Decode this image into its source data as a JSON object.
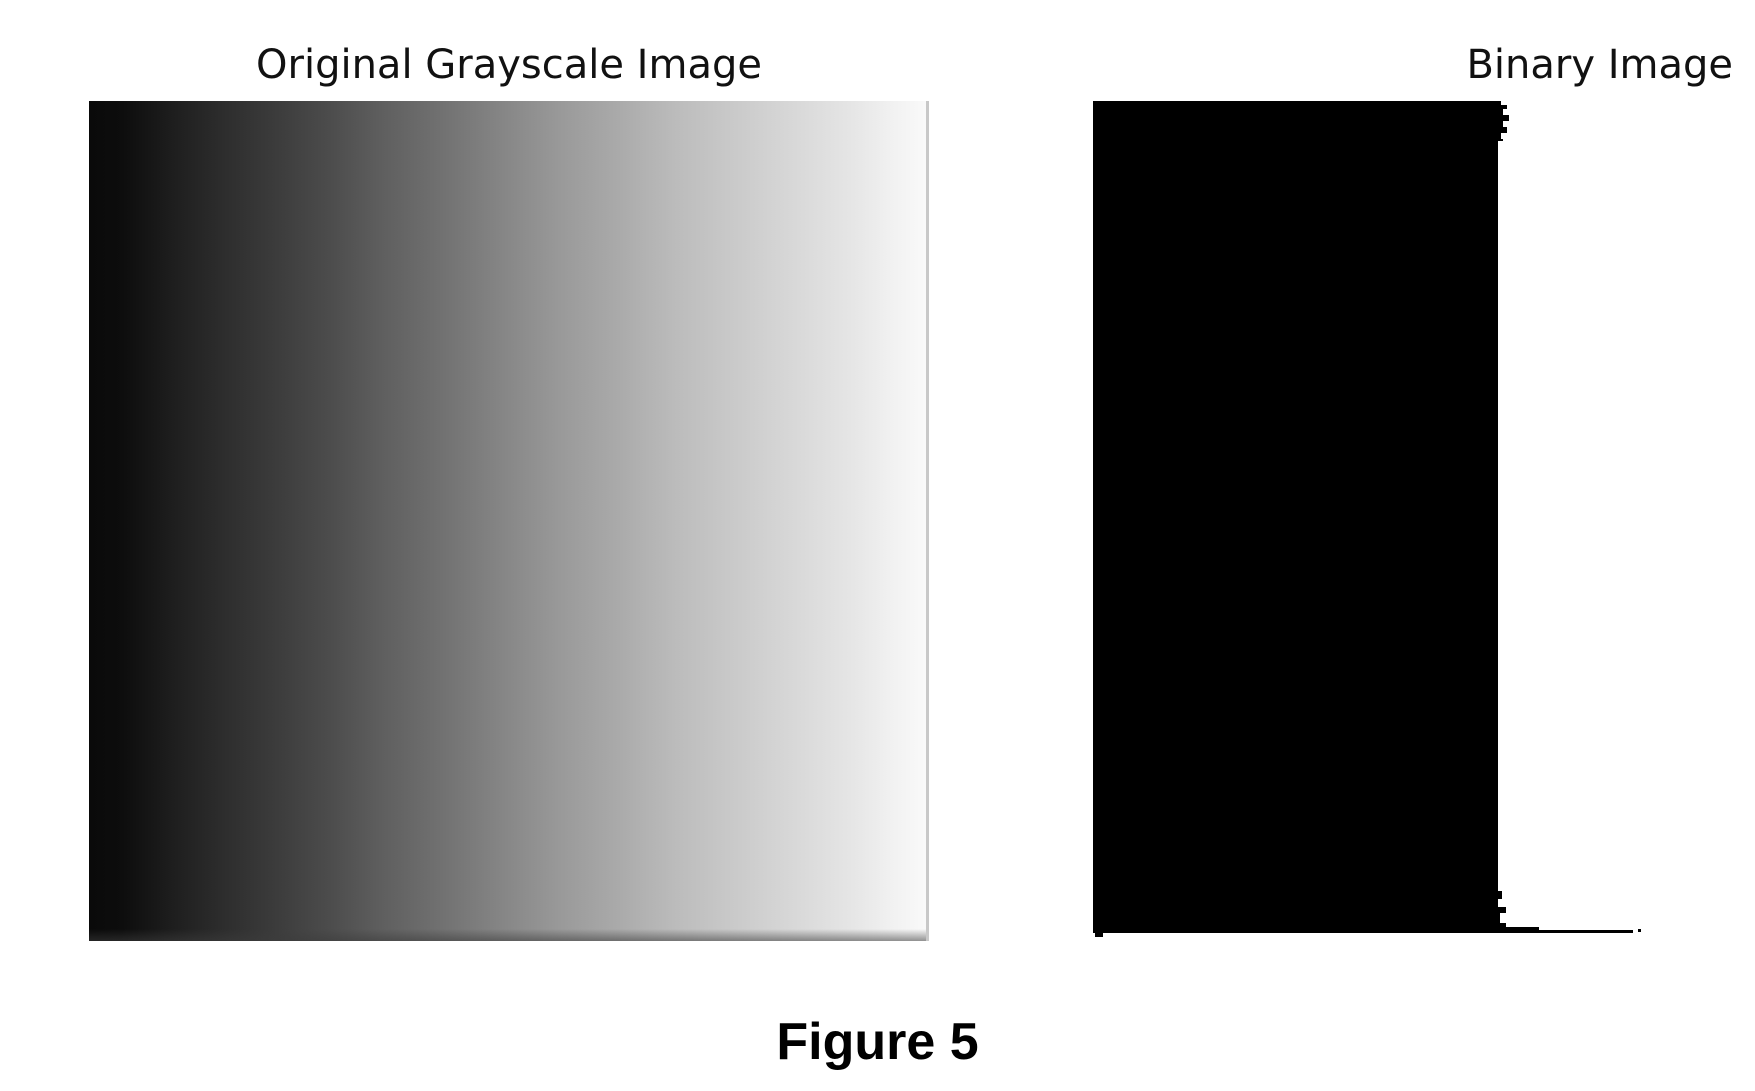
{
  "figure": {
    "caption": "Figure 5",
    "panels": [
      {
        "title": "Original Grayscale Image"
      },
      {
        "title": "Binary Image"
      }
    ]
  },
  "colors": {
    "background": "#ffffff",
    "binary_foreground": "#000000",
    "gradient_dark": "#0a0a0a",
    "gradient_light": "#fafafa"
  }
}
